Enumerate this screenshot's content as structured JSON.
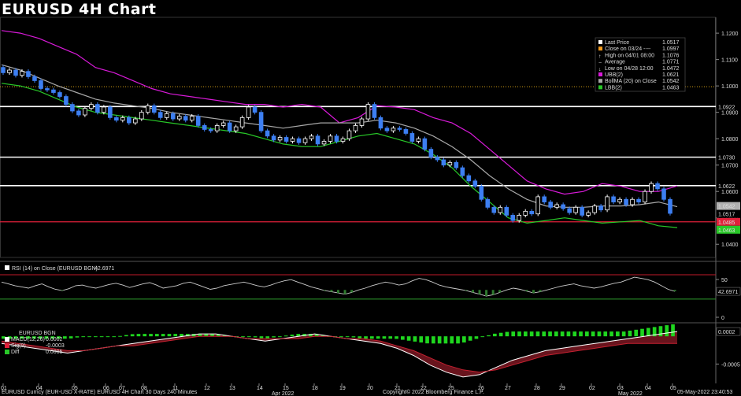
{
  "title": "EURUSD 4H Chart",
  "colors": {
    "bg": "#000000",
    "up": "#ffffff",
    "down": "#3d7ff2",
    "ubb": "#d91ad9",
    "lbb": "#28c828",
    "ma": "#a8a8a8",
    "hline": "#ffffff",
    "red_line": "#e0213a",
    "dotted": "#d4a017"
  },
  "price_axis": {
    "labels": [
      "1.1200",
      "1.1100",
      "1.1000",
      "1.0900",
      "1.0800",
      "1.0700",
      "1.0600",
      "1.0500",
      "1.0400"
    ]
  },
  "legend": [
    {
      "color": "#ffffff",
      "label": "Last Price",
      "value": "1.0517"
    },
    {
      "color": "#f59b1c",
      "label": "Close on 03/24 ----",
      "value": "1.0997"
    },
    {
      "color": "#ffffff",
      "label": "High on 04/01 08:00",
      "value": "1.1076",
      "icon": "up-arrow-icon"
    },
    {
      "color": "#ffffff",
      "label": "Average",
      "value": "1.0771",
      "icon": "average-icon"
    },
    {
      "color": "#ffffff",
      "label": "Low on 04/28 12:00",
      "value": "1.0472",
      "icon": "down-arrow-icon"
    },
    {
      "color": "#d91ad9",
      "label": "UBB(2)",
      "value": "1.0621"
    },
    {
      "color": "#a8a8a8",
      "label": "BollMA (20)  on Close",
      "value": "1.0542"
    },
    {
      "color": "#28c828",
      "label": "LBB(2)",
      "value": "1.0463"
    }
  ],
  "hlines": [
    {
      "value": "1.0922",
      "label": "1.0922"
    },
    {
      "value": "1.0730",
      "label": "1.0730"
    },
    {
      "value": "1.0622",
      "label": "1.0622"
    },
    {
      "value": "1.0485",
      "label": "1.0485"
    }
  ],
  "price_tags": [
    {
      "label": "1.0542",
      "bg": "#b0b0b0",
      "fg": "#000"
    },
    {
      "label": "1.0517",
      "bg": "#000000",
      "fg": "#fff"
    },
    {
      "label": "1.0485",
      "bg": "#e0213a",
      "fg": "#fff"
    },
    {
      "label": "1.0463",
      "bg": "#28c828",
      "fg": "#000"
    }
  ],
  "rsi": {
    "label": "RSI (14)  on Close (EURUSD BGN)",
    "value": "42.6971",
    "axis": [
      "50",
      "0"
    ]
  },
  "macd": {
    "title": "EURUSD BGN",
    "lines": [
      {
        "color": "#ffffff",
        "label": "MACD(12,26)",
        "value": "0.0002"
      },
      {
        "color": "#e0213a",
        "label": "Sig(9)",
        "value": "-0.0003"
      },
      {
        "color": "#28c828",
        "label": "Diff",
        "value": "0.0005"
      }
    ],
    "axis": [
      "0.0002",
      "-0.0005"
    ]
  },
  "x_axis": {
    "days": [
      "01",
      "04",
      "05",
      "06",
      "07",
      "08",
      "11",
      "12",
      "13",
      "14",
      "15",
      "18",
      "19",
      "20",
      "21",
      "22",
      "25",
      "26",
      "27",
      "28",
      "29",
      "02",
      "03",
      "04",
      "05"
    ],
    "months": [
      "Apr 2022",
      "May 2022"
    ]
  },
  "footer": {
    "left": "EURUSD Curncy (EUR-USD X-RATE) EURUSD 4H Chart 30 Days 240 Minutes",
    "center": "Copyright© 2022 Bloomberg Finance L.P.",
    "right": "05-May-2022 23:40:53"
  },
  "chart_data": {
    "type": "candlestick",
    "title": "EURUSD 4H Chart",
    "ylim": [
      1.035,
      1.126
    ],
    "bars": [
      {
        "o": 1.107,
        "c": 1.105
      },
      {
        "o": 1.105,
        "c": 1.106
      },
      {
        "o": 1.106,
        "c": 1.104
      },
      {
        "o": 1.104,
        "c": 1.1055
      },
      {
        "o": 1.1055,
        "c": 1.1035
      },
      {
        "o": 1.1035,
        "c": 1.102
      },
      {
        "o": 1.102,
        "c": 1.099
      },
      {
        "o": 1.099,
        "c": 1.0985
      },
      {
        "o": 1.0985,
        "c": 1.0975
      },
      {
        "o": 1.0975,
        "c": 1.096
      },
      {
        "o": 1.096,
        "c": 1.093
      },
      {
        "o": 1.093,
        "c": 1.0905
      },
      {
        "o": 1.0905,
        "c": 1.089
      },
      {
        "o": 1.089,
        "c": 1.0915
      },
      {
        "o": 1.0915,
        "c": 1.093
      },
      {
        "o": 1.093,
        "c": 1.09
      },
      {
        "o": 1.09,
        "c": 1.092
      },
      {
        "o": 1.092,
        "c": 1.088
      },
      {
        "o": 1.088,
        "c": 1.087
      },
      {
        "o": 1.087,
        "c": 1.088
      },
      {
        "o": 1.088,
        "c": 1.086
      },
      {
        "o": 1.086,
        "c": 1.0875
      },
      {
        "o": 1.0875,
        "c": 1.09
      },
      {
        "o": 1.09,
        "c": 1.0925
      },
      {
        "o": 1.0925,
        "c": 1.09
      },
      {
        "o": 1.09,
        "c": 1.088
      },
      {
        "o": 1.088,
        "c": 1.0895
      },
      {
        "o": 1.0895,
        "c": 1.0875
      },
      {
        "o": 1.0875,
        "c": 1.0885
      },
      {
        "o": 1.0885,
        "c": 1.087
      },
      {
        "o": 1.087,
        "c": 1.0885
      },
      {
        "o": 1.0885,
        "c": 1.085
      },
      {
        "o": 1.085,
        "c": 1.0835
      },
      {
        "o": 1.0835,
        "c": 1.083
      },
      {
        "o": 1.083,
        "c": 1.085
      },
      {
        "o": 1.085,
        "c": 1.086
      },
      {
        "o": 1.086,
        "c": 1.083
      },
      {
        "o": 1.083,
        "c": 1.0845
      },
      {
        "o": 1.0845,
        "c": 1.088
      },
      {
        "o": 1.088,
        "c": 1.092
      },
      {
        "o": 1.092,
        "c": 1.09
      },
      {
        "o": 1.09,
        "c": 1.083
      },
      {
        "o": 1.083,
        "c": 1.081
      },
      {
        "o": 1.081,
        "c": 1.0795
      },
      {
        "o": 1.0795,
        "c": 1.0805
      },
      {
        "o": 1.0805,
        "c": 1.079
      },
      {
        "o": 1.079,
        "c": 1.08
      },
      {
        "o": 1.08,
        "c": 1.0785
      },
      {
        "o": 1.0785,
        "c": 1.08
      },
      {
        "o": 1.08,
        "c": 1.081
      },
      {
        "o": 1.081,
        "c": 1.078
      },
      {
        "o": 1.078,
        "c": 1.079
      },
      {
        "o": 1.079,
        "c": 1.081
      },
      {
        "o": 1.081,
        "c": 1.079
      },
      {
        "o": 1.079,
        "c": 1.08
      },
      {
        "o": 1.08,
        "c": 1.083
      },
      {
        "o": 1.083,
        "c": 1.085
      },
      {
        "o": 1.085,
        "c": 1.0875
      },
      {
        "o": 1.0875,
        "c": 1.093
      },
      {
        "o": 1.093,
        "c": 1.088
      },
      {
        "o": 1.088,
        "c": 1.084
      },
      {
        "o": 1.084,
        "c": 1.083
      },
      {
        "o": 1.083,
        "c": 1.084
      },
      {
        "o": 1.084,
        "c": 1.0835
      },
      {
        "o": 1.0835,
        "c": 1.082
      },
      {
        "o": 1.082,
        "c": 1.079
      },
      {
        "o": 1.079,
        "c": 1.08
      },
      {
        "o": 1.08,
        "c": 1.076
      },
      {
        "o": 1.076,
        "c": 1.073
      },
      {
        "o": 1.073,
        "c": 1.072
      },
      {
        "o": 1.072,
        "c": 1.07
      },
      {
        "o": 1.07,
        "c": 1.071
      },
      {
        "o": 1.071,
        "c": 1.069
      },
      {
        "o": 1.069,
        "c": 1.066
      },
      {
        "o": 1.066,
        "c": 1.064
      },
      {
        "o": 1.064,
        "c": 1.062
      },
      {
        "o": 1.062,
        "c": 1.057
      },
      {
        "o": 1.057,
        "c": 1.054
      },
      {
        "o": 1.054,
        "c": 1.052
      },
      {
        "o": 1.052,
        "c": 1.054
      },
      {
        "o": 1.054,
        "c": 1.051
      },
      {
        "o": 1.051,
        "c": 1.049
      },
      {
        "o": 1.049,
        "c": 1.051
      },
      {
        "o": 1.051,
        "c": 1.0525
      },
      {
        "o": 1.0525,
        "c": 1.0515
      },
      {
        "o": 1.0515,
        "c": 1.058
      },
      {
        "o": 1.058,
        "c": 1.056
      },
      {
        "o": 1.056,
        "c": 1.054
      },
      {
        "o": 1.054,
        "c": 1.055
      },
      {
        "o": 1.055,
        "c": 1.0535
      },
      {
        "o": 1.0535,
        "c": 1.052
      },
      {
        "o": 1.052,
        "c": 1.054
      },
      {
        "o": 1.054,
        "c": 1.051
      },
      {
        "o": 1.051,
        "c": 1.052
      },
      {
        "o": 1.052,
        "c": 1.0545
      },
      {
        "o": 1.0545,
        "c": 1.053
      },
      {
        "o": 1.053,
        "c": 1.058
      },
      {
        "o": 1.058,
        "c": 1.056
      },
      {
        "o": 1.056,
        "c": 1.057
      },
      {
        "o": 1.057,
        "c": 1.055
      },
      {
        "o": 1.055,
        "c": 1.057
      },
      {
        "o": 1.057,
        "c": 1.056
      },
      {
        "o": 1.056,
        "c": 1.06
      },
      {
        "o": 1.06,
        "c": 1.063
      },
      {
        "o": 1.063,
        "c": 1.061
      },
      {
        "o": 1.061,
        "c": 1.057
      },
      {
        "o": 1.057,
        "c": 1.0517
      }
    ],
    "ubb": [
      1.121,
      1.12,
      1.118,
      1.115,
      1.112,
      1.107,
      1.105,
      1.102,
      1.099,
      1.097,
      1.096,
      1.095,
      1.094,
      1.093,
      1.093,
      1.092,
      1.093,
      1.092,
      1.086,
      1.088,
      1.0925,
      1.092,
      1.091,
      1.088,
      1.086,
      1.082,
      1.076,
      1.07,
      1.064,
      1.061,
      1.059,
      1.06,
      1.063,
      1.062,
      1.06,
      1.06,
      1.0621
    ],
    "ma": [
      1.108,
      1.106,
      1.103,
      1.1,
      1.0975,
      1.095,
      1.0935,
      1.0925,
      1.0915,
      1.09,
      1.089,
      1.088,
      1.087,
      1.086,
      1.085,
      1.084,
      1.085,
      1.086,
      1.086,
      1.086,
      1.087,
      1.086,
      1.084,
      1.081,
      1.077,
      1.072,
      1.066,
      1.061,
      1.057,
      1.0545,
      1.054,
      1.054,
      1.0545,
      1.0545,
      1.055,
      1.056,
      1.0542
    ],
    "lbb": [
      1.101,
      1.1,
      1.098,
      1.095,
      1.092,
      1.09,
      1.089,
      1.088,
      1.087,
      1.086,
      1.085,
      1.084,
      1.083,
      1.082,
      1.08,
      1.078,
      1.077,
      1.077,
      1.079,
      1.081,
      1.082,
      1.08,
      1.078,
      1.074,
      1.069,
      1.062,
      1.056,
      1.05,
      1.048,
      1.049,
      1.05,
      1.049,
      1.048,
      1.0485,
      1.049,
      1.047,
      1.0463
    ],
    "rsi": [
      58,
      55,
      52,
      50,
      48,
      52,
      55,
      50,
      46,
      44,
      47,
      52,
      53,
      50,
      48,
      51,
      54,
      56,
      53,
      49,
      52,
      55,
      57,
      53,
      48,
      50,
      52,
      56,
      58,
      54,
      50,
      46,
      48,
      52,
      54,
      56,
      58,
      55,
      52,
      50,
      53,
      57,
      60,
      62,
      58,
      54,
      50,
      47,
      44,
      42,
      40,
      38,
      41,
      45,
      48,
      52,
      55,
      58,
      56,
      53,
      55,
      60,
      64,
      62,
      58,
      53,
      50,
      48,
      46,
      44,
      41,
      38,
      35,
      37,
      41,
      45,
      48,
      46,
      43,
      40,
      42,
      45,
      48,
      51,
      53,
      55,
      52,
      50,
      48,
      50,
      53,
      56,
      58,
      62,
      66,
      64,
      62,
      58,
      52,
      46,
      42.7
    ],
    "macd": [
      -0.0003,
      -0.0004,
      -0.0005,
      -0.0006,
      -0.0007,
      -0.0006,
      -0.0005,
      -0.0004,
      -0.0003,
      -0.0002,
      -0.0001,
      0.0,
      0.0001,
      0.0001,
      0.0,
      -0.0001,
      -0.0002,
      -0.0001,
      0.0,
      0.0001,
      0.0,
      -0.0001,
      -0.0002,
      -0.0003,
      -0.0005,
      -0.0008,
      -0.0012,
      -0.0015,
      -0.0017,
      -0.0016,
      -0.0013,
      -0.001,
      -0.0008,
      -0.0006,
      -0.0005,
      -0.0004,
      -0.0003,
      -0.0002,
      -0.0001,
      0.0,
      0.0001,
      0.0002
    ],
    "signal": [
      -0.0002,
      -0.0003,
      -0.0004,
      -0.0005,
      -0.0006,
      -0.0006,
      -0.0005,
      -0.0004,
      -0.0004,
      -0.0003,
      -0.0002,
      -0.0001,
      0.0,
      0.0,
      0.0,
      -0.0001,
      -0.0001,
      -0.0001,
      -0.0001,
      0.0,
      0.0,
      -0.0001,
      -0.0001,
      -0.0002,
      -0.0004,
      -0.0006,
      -0.0009,
      -0.0012,
      -0.0014,
      -0.0015,
      -0.0014,
      -0.0012,
      -0.001,
      -0.0008,
      -0.0007,
      -0.0006,
      -0.0005,
      -0.0004,
      -0.0003,
      -0.0003,
      -0.0003,
      -0.0003
    ]
  }
}
